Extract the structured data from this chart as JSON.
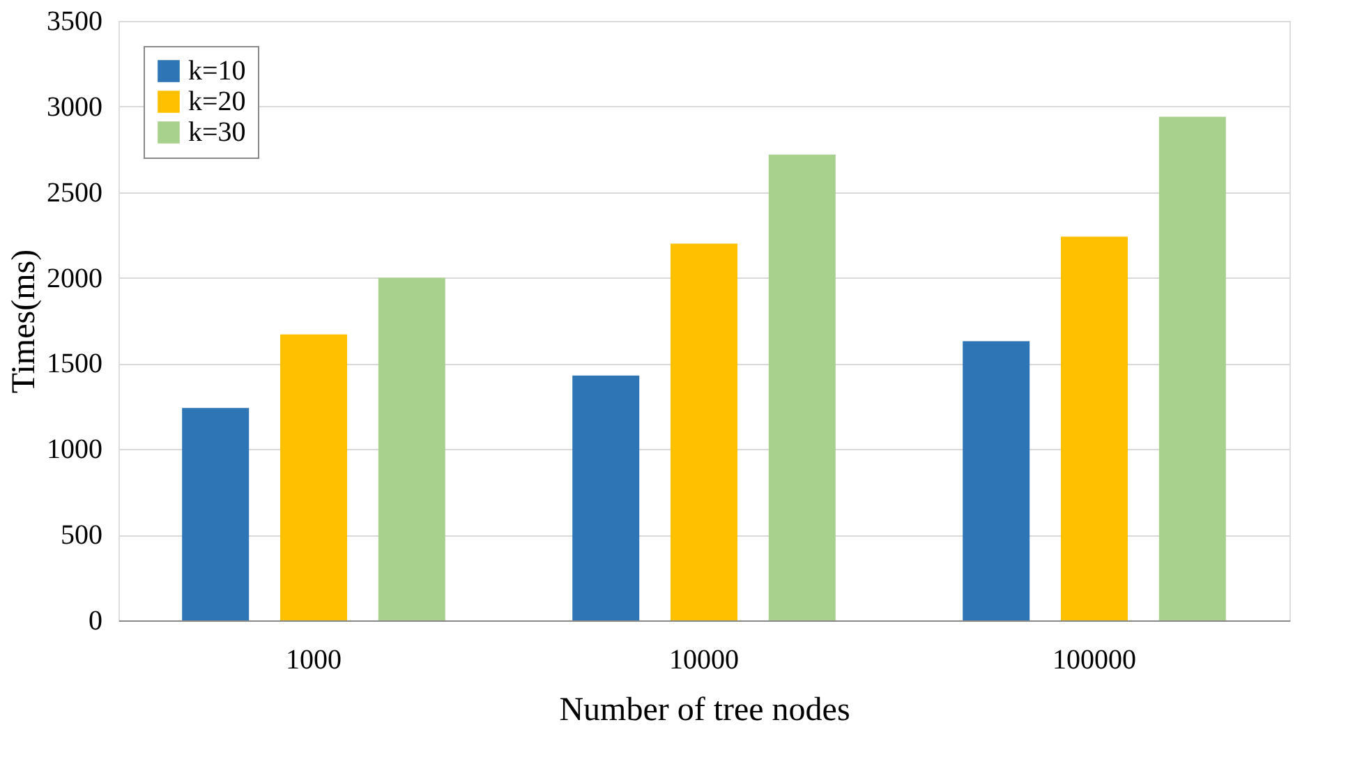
{
  "chart_data": {
    "type": "bar",
    "xlabel": "Number of tree nodes",
    "ylabel": "Times(ms)",
    "categories": [
      "1000",
      "10000",
      "100000"
    ],
    "series": [
      {
        "name": "k=10",
        "color": "#2e75b6",
        "values": [
          1240,
          1430,
          1630
        ]
      },
      {
        "name": "k=20",
        "color": "#ffc000",
        "values": [
          1670,
          2200,
          2240
        ]
      },
      {
        "name": "k=30",
        "color": "#a9d18e",
        "values": [
          2000,
          2720,
          2940
        ]
      }
    ],
    "ylim": [
      0,
      3500
    ],
    "yticks": [
      0,
      500,
      1000,
      1500,
      2000,
      2500,
      3000,
      3500
    ],
    "grid": "y",
    "legend": "top left"
  }
}
